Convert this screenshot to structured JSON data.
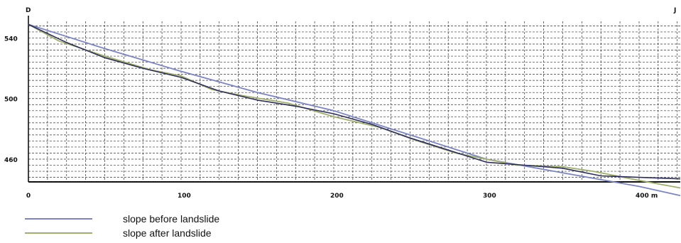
{
  "chart_data": {
    "type": "line",
    "title": "",
    "xlabel": "",
    "ylabel": "",
    "xlim": [
      0,
      427
    ],
    "ylim": [
      445,
      551
    ],
    "grid": true,
    "x_ticks": [
      0,
      100,
      200,
      300,
      400
    ],
    "x_tick_labels": [
      "0",
      "100",
      "200",
      "300",
      "400 m"
    ],
    "y_ticks": [
      460,
      500,
      540
    ],
    "y_tick_labels": [
      "460",
      "500",
      "540"
    ],
    "corner_labels": {
      "left": "D",
      "right": "J"
    },
    "legend_position": "bottom-left",
    "series": [
      {
        "name": "slope before landslide",
        "color": "#7b84c6",
        "x": [
          0,
          50,
          100,
          150,
          200,
          250,
          300,
          350,
          400,
          427
        ],
        "y": [
          549,
          533,
          518,
          504,
          492,
          476,
          460,
          451,
          442,
          436
        ]
      },
      {
        "name": "slope after landslide",
        "color": "#9fb06a",
        "x": [
          0,
          20,
          50,
          80,
          100,
          120,
          140,
          170,
          200,
          230,
          255,
          280,
          300,
          320,
          350,
          370,
          400,
          427
        ],
        "y": [
          549,
          538,
          528,
          519,
          515,
          506,
          502,
          497,
          488,
          481,
          472,
          464,
          460,
          456,
          455,
          452,
          446,
          441
        ]
      },
      {
        "name": "",
        "color": "#2c2c5e",
        "x": [
          0,
          25,
          50,
          75,
          100,
          125,
          150,
          175,
          200,
          225,
          250,
          275,
          300,
          325,
          350,
          375,
          400,
          427
        ],
        "y": [
          549,
          537,
          527,
          520,
          514,
          505,
          499,
          495,
          490,
          483,
          474,
          466,
          458,
          456,
          454,
          449,
          448,
          447
        ]
      }
    ]
  }
}
